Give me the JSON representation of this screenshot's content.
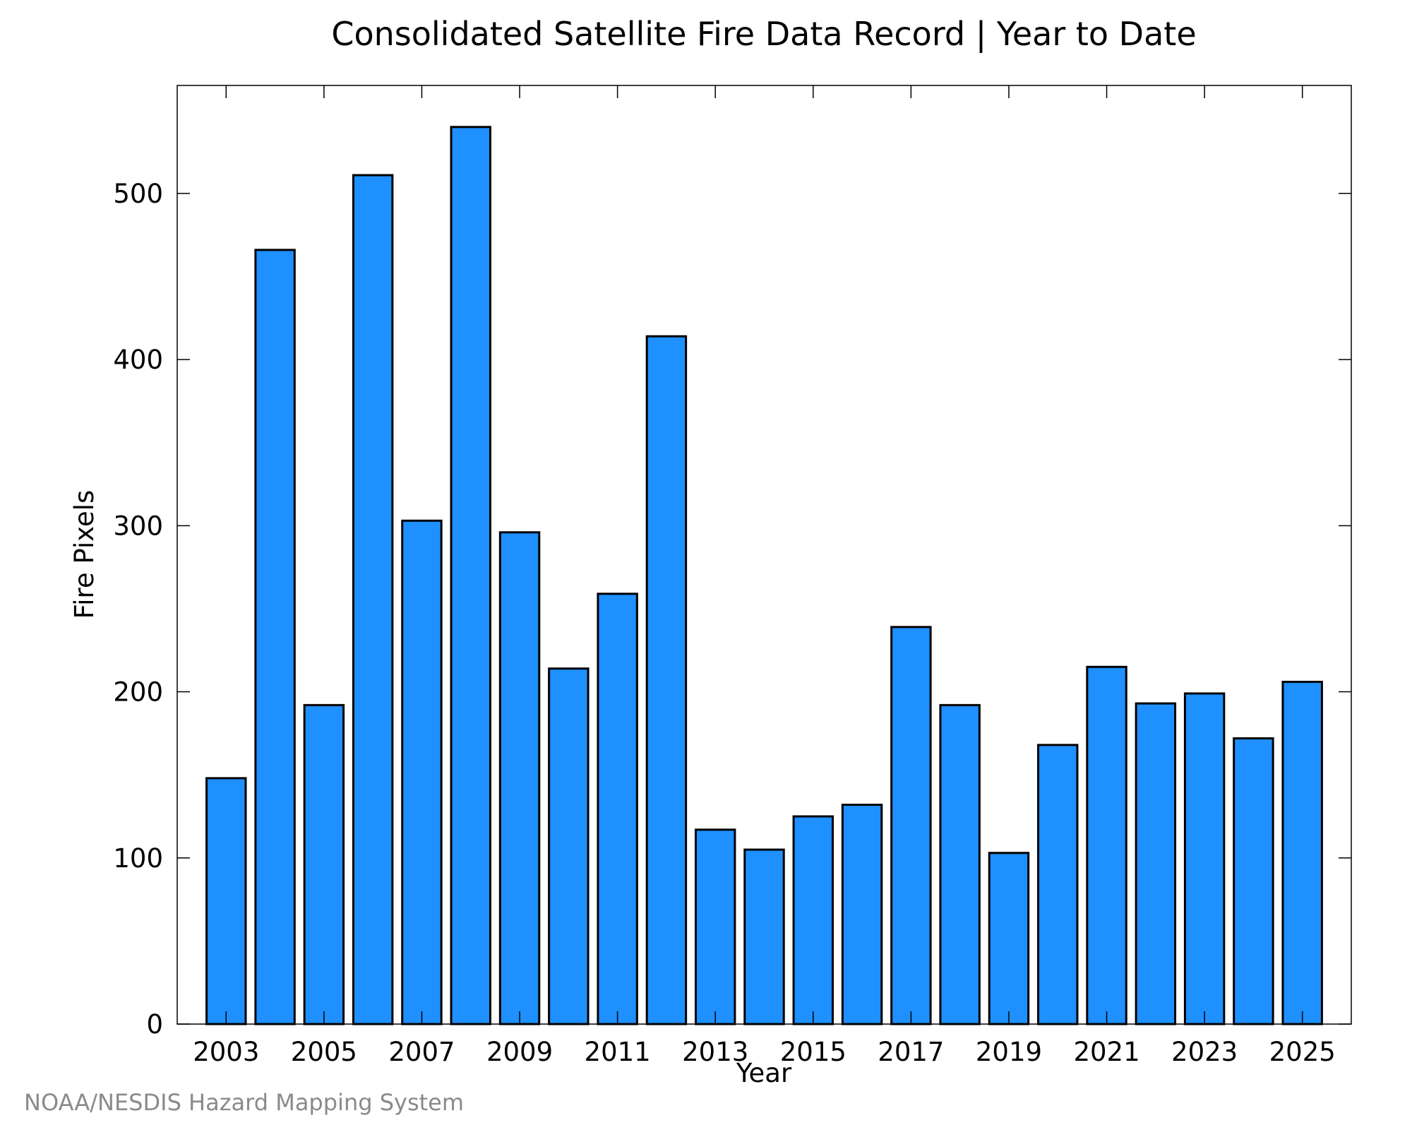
{
  "footer": {
    "credit": "NOAA/NESDIS Hazard Mapping System"
  },
  "colors": {
    "bar_fill": "#1e90ff",
    "bar_stroke": "#000000",
    "axis": "#000000",
    "background": "#ffffff"
  },
  "chart_data": {
    "type": "bar",
    "title": "Consolidated Satellite Fire Data Record | Year to Date",
    "xlabel": "Year",
    "ylabel": "Fire Pixels",
    "categories": [
      2003,
      2004,
      2005,
      2006,
      2007,
      2008,
      2009,
      2010,
      2011,
      2012,
      2013,
      2014,
      2015,
      2016,
      2017,
      2018,
      2019,
      2020,
      2021,
      2022,
      2023,
      2024,
      2025
    ],
    "values": [
      148,
      466,
      192,
      511,
      303,
      540,
      296,
      214,
      259,
      414,
      117,
      105,
      125,
      132,
      239,
      192,
      103,
      168,
      215,
      193,
      199,
      172,
      206
    ],
    "xlim": [
      2002,
      2026
    ],
    "ylim": [
      0,
      565
    ],
    "xticks_labeled": [
      "2003",
      "2005",
      "2007",
      "2009",
      "2011",
      "2013",
      "2015",
      "2017",
      "2019",
      "2021",
      "2023",
      "2025"
    ],
    "yticks": [
      "0",
      "100",
      "200",
      "300",
      "400",
      "500"
    ],
    "legend": "none",
    "grid": false
  }
}
